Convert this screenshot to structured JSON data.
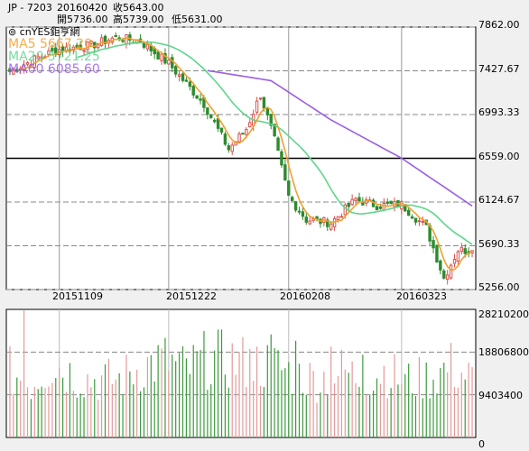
{
  "header": {
    "symbol": "JP - 7203",
    "date": "20160420",
    "close": "收5643.00",
    "open": "開5736.00",
    "high": "高5739.00",
    "low": "低5631.00"
  },
  "legend": {
    "brand": "cnYES鉅亨網",
    "ma5": "MA5 5667.20",
    "ma20": "MA20 5721.25",
    "ma60": "MA60 6085.60"
  },
  "colors": {
    "up": "#d9534f",
    "down": "#2e8b2e",
    "ma5": "#f0a030",
    "ma20": "#5ed68a",
    "ma60": "#9b5de5",
    "background": "#ffffff",
    "grid": "#888888"
  },
  "chart_data": [
    {
      "type": "candlestick",
      "title": "JP - 7203",
      "x_ticks": [
        "20151109",
        "20151222",
        "20160208",
        "20160323"
      ],
      "y_ticks": [
        "7862.00",
        "7427.67",
        "6993.33",
        "6559.00",
        "6124.67",
        "5690.33",
        "5256.00"
      ],
      "ylim": [
        5256,
        7862
      ],
      "grid": true,
      "legend_position": "top-left",
      "close_anchors": {
        "dates": [
          "2015-10-20",
          "2015-10-30",
          "2015-11-09",
          "2015-11-20",
          "2015-12-01",
          "2015-12-10",
          "2015-12-22",
          "2016-01-05",
          "2016-01-14",
          "2016-01-21",
          "2016-01-27",
          "2016-02-02",
          "2016-02-08",
          "2016-02-15",
          "2016-02-24",
          "2016-03-04",
          "2016-03-14",
          "2016-03-23",
          "2016-04-01",
          "2016-04-08",
          "2016-04-14",
          "2016-04-20"
        ],
        "values": [
          7420,
          7560,
          7640,
          7680,
          7760,
          7720,
          7500,
          7100,
          6650,
          6850,
          7190,
          6740,
          6180,
          5950,
          5920,
          6150,
          6090,
          6100,
          5870,
          5370,
          5650,
          5643
        ]
      },
      "ma60_anchors": {
        "dates": [
          "2016-01-06",
          "2016-02-01",
          "2016-02-24",
          "2016-03-23",
          "2016-04-20"
        ],
        "values": [
          7430,
          7330,
          6940,
          6560,
          6086
        ]
      },
      "series": [
        {
          "name": "MA5",
          "value": 5667.2
        },
        {
          "name": "MA20",
          "value": 5721.25
        },
        {
          "name": "MA60",
          "value": 6085.6
        }
      ]
    },
    {
      "type": "bar",
      "title": "",
      "y_ticks": [
        "28210200",
        "18806800",
        "9403400",
        "0"
      ],
      "ylim": [
        0,
        28210200
      ],
      "grid": true,
      "volume_anchors": [
        14400000,
        11800000,
        16400000,
        13400000,
        12600000,
        12800000,
        15600000,
        16900000,
        14800000,
        17400000,
        17000000,
        16200000,
        15800000,
        13900000,
        12700000,
        14600000,
        13100000,
        14700000,
        12400000,
        13200000,
        15600000,
        12800000
      ],
      "highlighted_bars": [
        {
          "date": "2015-10-26",
          "value": 28000000
        },
        {
          "date": "2016-01-22",
          "value": 19500000
        },
        {
          "date": "2016-02-01",
          "value": 22700000
        },
        {
          "date": "2016-02-10",
          "value": 21300000
        },
        {
          "date": "2016-02-24",
          "value": 20000000
        },
        {
          "date": "2016-03-08",
          "value": 18200000
        }
      ]
    }
  ]
}
